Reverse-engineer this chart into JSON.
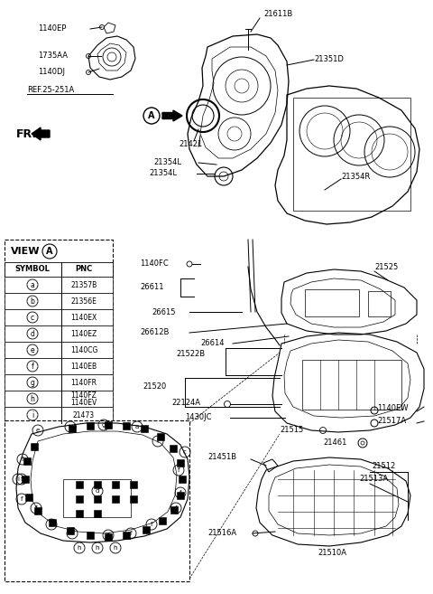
{
  "bg_color": "#ffffff",
  "fig_width": 4.8,
  "fig_height": 6.57,
  "dpi": 100,
  "view_symbols": [
    "a",
    "b",
    "c",
    "d",
    "e",
    "f",
    "g",
    "h",
    "i"
  ],
  "view_pncs": [
    "21357B",
    "21356E",
    "1140EX",
    "1140EZ",
    "1140CG",
    "1140EB",
    "1140FR",
    "1140FZ / 1140EV",
    "21473"
  ]
}
